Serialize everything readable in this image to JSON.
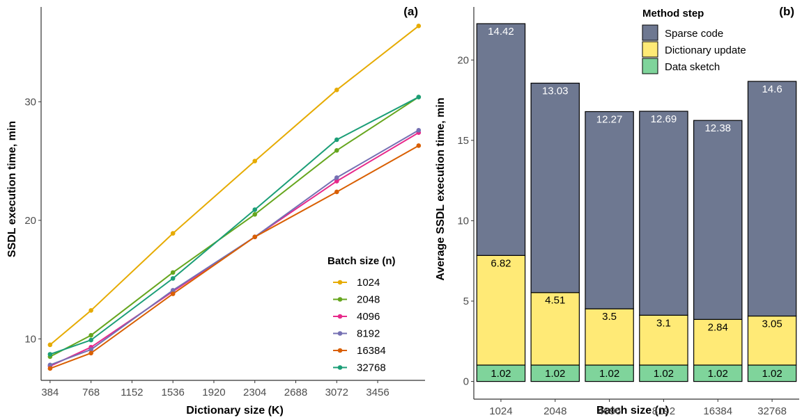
{
  "chart_data": [
    {
      "type": "line",
      "panel_tag": "(a)",
      "xlabel": "Dictionary size (K)",
      "ylabel": "SSDL execution time, min",
      "x_ticks": [
        384,
        768,
        1152,
        1536,
        1920,
        2304,
        2688,
        3072,
        3456
      ],
      "y_ticks": [
        10,
        20,
        30
      ],
      "xlim": [
        300,
        3900
      ],
      "ylim": [
        6.5,
        38
      ],
      "x": [
        384,
        768,
        1536,
        2304,
        3072,
        3840
      ],
      "legend_title": "Batch size (n)",
      "legend_position": "right",
      "grid": false,
      "series": [
        {
          "name": "1024",
          "color": "#E6AB02",
          "values": [
            9.5,
            12.4,
            18.9,
            25.0,
            31.0,
            36.4
          ]
        },
        {
          "name": "2048",
          "color": "#66A61E",
          "values": [
            8.5,
            10.3,
            15.6,
            20.5,
            25.9,
            30.4
          ]
        },
        {
          "name": "4096",
          "color": "#E7298A",
          "values": [
            7.7,
            9.3,
            14.0,
            18.6,
            23.3,
            27.4
          ]
        },
        {
          "name": "8192",
          "color": "#7570B3",
          "values": [
            7.8,
            9.1,
            14.1,
            18.6,
            23.6,
            27.6
          ]
        },
        {
          "name": "16384",
          "color": "#D95F02",
          "values": [
            7.5,
            8.8,
            13.8,
            18.6,
            22.4,
            26.3
          ]
        },
        {
          "name": "32768",
          "color": "#1B9E77",
          "values": [
            8.7,
            9.9,
            15.1,
            20.9,
            26.8,
            30.4
          ]
        }
      ]
    },
    {
      "type": "bar",
      "stacked": true,
      "panel_tag": "(b)",
      "xlabel": "Batch size (n)",
      "ylabel": "Average SSDL execution time, min",
      "categories": [
        "1024",
        "2048",
        "4096",
        "8192",
        "16384",
        "32768"
      ],
      "y_ticks": [
        0,
        5,
        10,
        15,
        20
      ],
      "ylim": [
        -1.1,
        23.3
      ],
      "legend_title": "Method step",
      "legend_position": "top-right",
      "grid": false,
      "series": [
        {
          "name": "Data sketch",
          "color": "#7FD49B",
          "label_color": "#000000",
          "values": [
            1.02,
            1.02,
            1.02,
            1.02,
            1.02,
            1.02
          ]
        },
        {
          "name": "Dictionary update",
          "color": "#FFEA76",
          "label_color": "#000000",
          "values": [
            6.82,
            4.51,
            3.5,
            3.1,
            2.84,
            3.05
          ]
        },
        {
          "name": "Sparse code",
          "color": "#6E7891",
          "label_color": "#ffffff",
          "values": [
            14.42,
            13.03,
            12.27,
            12.69,
            12.38,
            14.6
          ]
        }
      ],
      "legend_order": [
        "Sparse code",
        "Dictionary update",
        "Data sketch"
      ]
    }
  ]
}
